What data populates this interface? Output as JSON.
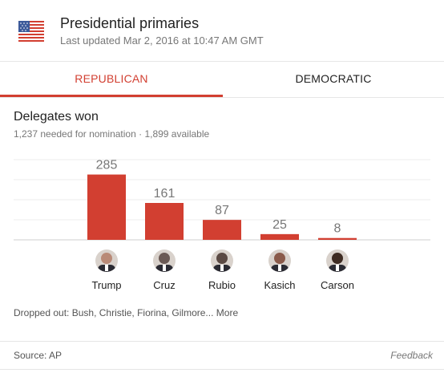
{
  "header": {
    "title": "Presidential primaries",
    "updated": "Last updated Mar 2, 2016 at 10:47 AM GMT",
    "flag_icon": "us-flag-icon"
  },
  "tabs": [
    {
      "label": "REPUBLICAN",
      "active": true
    },
    {
      "label": "DEMOCRATIC",
      "active": false
    }
  ],
  "section": {
    "title": "Delegates won",
    "subtitle": "1,237 needed for nomination · 1,899 available"
  },
  "colors": {
    "accent": "#d23f31",
    "bar": "#d23f31",
    "text_secondary": "#777777"
  },
  "chart_data": {
    "type": "bar",
    "categories": [
      "Trump",
      "Cruz",
      "Rubio",
      "Kasich",
      "Carson"
    ],
    "values": [
      285,
      161,
      87,
      25,
      8
    ],
    "ylim": [
      0,
      350
    ],
    "grid": true,
    "legend": "none"
  },
  "candidates": [
    {
      "name": "Trump",
      "avatar": "trump-avatar",
      "avatar_color": "#b98a77"
    },
    {
      "name": "Cruz",
      "avatar": "cruz-avatar",
      "avatar_color": "#6b5a55"
    },
    {
      "name": "Rubio",
      "avatar": "rubio-avatar",
      "avatar_color": "#5b4a44"
    },
    {
      "name": "Kasich",
      "avatar": "kasich-avatar",
      "avatar_color": "#8a5a4a"
    },
    {
      "name": "Carson",
      "avatar": "carson-avatar",
      "avatar_color": "#3e2b22"
    }
  ],
  "footer": {
    "dropped_prefix": "Dropped out: Bush, Christie, Fiorina, Gilmore...",
    "more_label": "More",
    "source": "Source: AP",
    "feedback": "Feedback"
  }
}
